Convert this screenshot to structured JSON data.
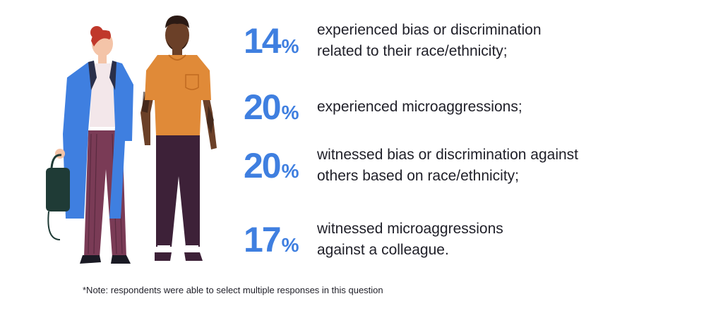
{
  "illustration": {
    "name": "two-people-illustration",
    "colors": {
      "coat": "#3f7fe0",
      "trousers_stripe": "#7a3b56",
      "shirt": "#e08a38",
      "pants": "#3d2138",
      "skin": "#f4c4a8",
      "hair": "#c0382b",
      "dark_skin": "#6b4028",
      "bag": "#1f3b36"
    }
  },
  "stats": [
    {
      "value": "14",
      "unit": "%",
      "text": "experienced bias or discrimination\nrelated to their race/ethnicity;"
    },
    {
      "value": "20",
      "unit": "%",
      "text": "experienced microaggressions;"
    },
    {
      "value": "20",
      "unit": "%",
      "text": "witnessed bias or discrimination against\nothers based on race/ethnicity;"
    },
    {
      "value": "17",
      "unit": "%",
      "text": "witnessed microaggressions\nagainst a colleague."
    }
  ],
  "note": "*Note: respondents were able to select multiple responses in this question",
  "accent_color": "#3f7fe0"
}
